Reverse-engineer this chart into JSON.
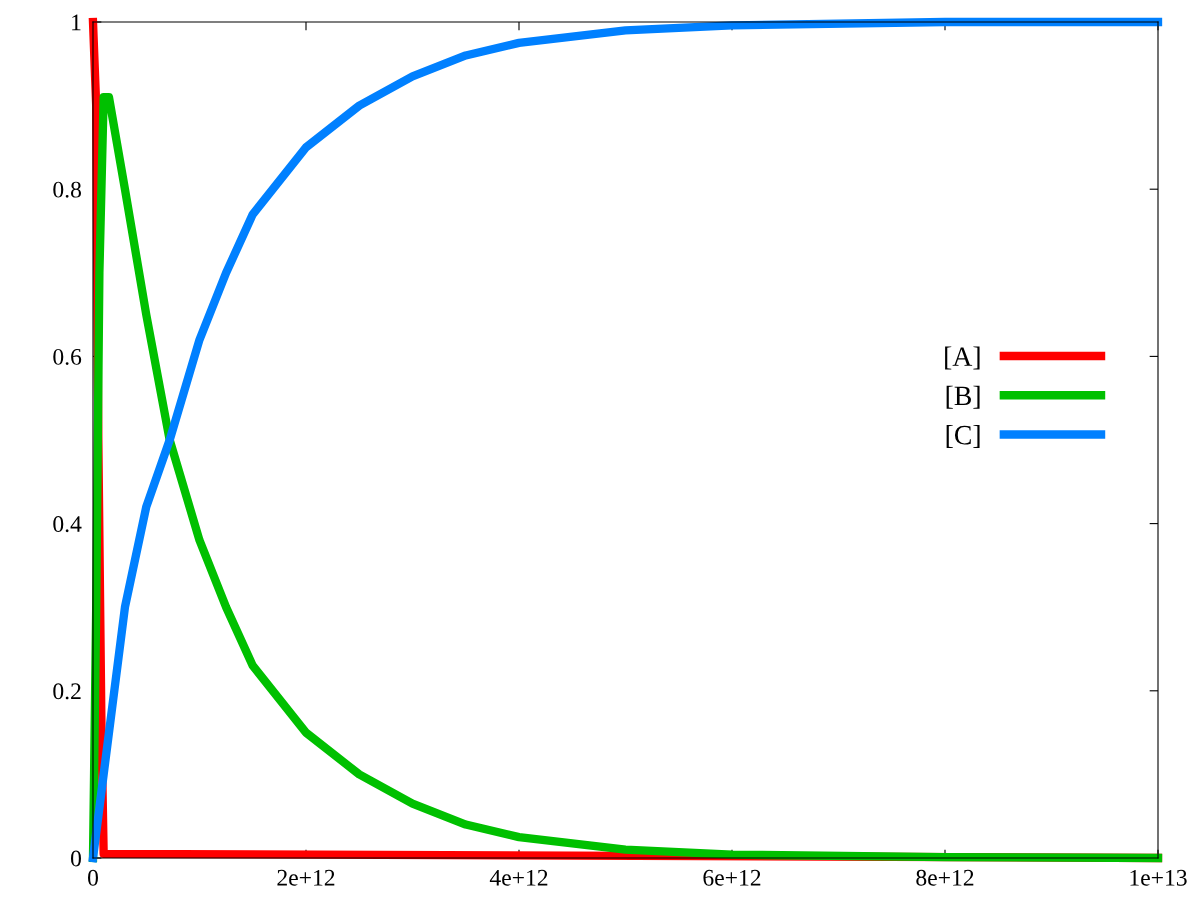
{
  "chart_data": {
    "type": "line",
    "xlim": [
      0,
      10000000000000.0
    ],
    "ylim": [
      0,
      1
    ],
    "xticks": [
      {
        "value": 0,
        "label": "0"
      },
      {
        "value": 2000000000000.0,
        "label": "2e+12"
      },
      {
        "value": 4000000000000.0,
        "label": "4e+12"
      },
      {
        "value": 6000000000000.0,
        "label": "6e+12"
      },
      {
        "value": 8000000000000.0,
        "label": "8e+12"
      },
      {
        "value": 10000000000000.0,
        "label": "1e+13"
      }
    ],
    "yticks": [
      0,
      0.2,
      0.4,
      0.6,
      0.8,
      1
    ],
    "legend": "right",
    "grid": false,
    "marker": "none",
    "line_style": "solid",
    "series": [
      {
        "name": "[A]",
        "color": "#ff0000",
        "x": [
          0,
          30000000000.0,
          50000000000.0,
          80000000000.0,
          100000000000.0,
          10000000000000.0
        ],
        "values": [
          1,
          0.9,
          0.5,
          0.15,
          0.005,
          0
        ]
      },
      {
        "name": "[B]",
        "color": "#00c000",
        "x": [
          0,
          30000000000.0,
          60000000000.0,
          100000000000.0,
          150000000000.0,
          300000000000.0,
          500000000000.0,
          720000000000.0,
          1000000000000.0,
          1250000000000.0,
          1500000000000.0,
          2000000000000.0,
          2500000000000.0,
          3000000000000.0,
          3500000000000.0,
          4000000000000.0,
          5000000000000.0,
          6000000000000.0,
          8000000000000.0,
          10000000000000.0
        ],
        "values": [
          0,
          0.3,
          0.7,
          0.91,
          0.91,
          0.8,
          0.65,
          0.5,
          0.38,
          0.3,
          0.23,
          0.15,
          0.1,
          0.065,
          0.04,
          0.025,
          0.01,
          0.004,
          0.001,
          0
        ]
      },
      {
        "name": "[C]",
        "color": "#0080ff",
        "x": [
          0,
          100000000000.0,
          300000000000.0,
          500000000000.0,
          720000000000.0,
          1000000000000.0,
          1250000000000.0,
          1500000000000.0,
          2000000000000.0,
          2500000000000.0,
          3000000000000.0,
          3500000000000.0,
          4000000000000.0,
          5000000000000.0,
          6000000000000.0,
          8000000000000.0,
          10000000000000.0
        ],
        "values": [
          0,
          0.1,
          0.3,
          0.42,
          0.5,
          0.62,
          0.7,
          0.77,
          0.85,
          0.9,
          0.935,
          0.96,
          0.975,
          0.99,
          0.996,
          1,
          1
        ]
      }
    ]
  }
}
